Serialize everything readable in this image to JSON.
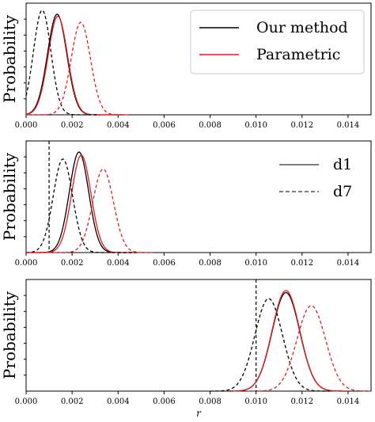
{
  "chart_data": {
    "type": "line",
    "xlabel": "r",
    "xlim": [
      0,
      0.015
    ],
    "xticks": [
      "0.000",
      "0.002",
      "0.004",
      "0.006",
      "0.008",
      "0.010",
      "0.012",
      "0.014"
    ],
    "legend_method": {
      "placement": "top-right",
      "entries": [
        {
          "label": "Our method",
          "color": "#000000"
        },
        {
          "label": "Parametric",
          "color": "#e31a1c"
        }
      ]
    },
    "legend_style": {
      "placement": "center-right",
      "entries": [
        {
          "label": "d1",
          "dash": "solid"
        },
        {
          "label": "d7",
          "dash": "dashed"
        }
      ]
    },
    "colors": {
      "ours": "#000000",
      "parametric": "#e31a1c"
    },
    "panels": [
      {
        "ylabel": "Probability",
        "true_value": null,
        "series": [
          {
            "method": "ours",
            "dataset": "d1",
            "dash": "solid",
            "curve": "gaussian",
            "mean": 0.00135,
            "sd": 0.00042,
            "peak": 1.0,
            "x_range": [
              0.0,
              0.0042
            ]
          },
          {
            "method": "parametric",
            "dataset": "d1",
            "dash": "solid",
            "curve": "gaussian",
            "mean": 0.00138,
            "sd": 0.00042,
            "peak": 0.98,
            "x_range": [
              0.0,
              0.0042
            ]
          },
          {
            "method": "ours",
            "dataset": "d7",
            "dash": "dashed",
            "curve": "gaussian",
            "mean": 0.0007,
            "sd": 0.00038,
            "peak": 1.04,
            "x_range": [
              0.0,
              0.0032
            ]
          },
          {
            "method": "parametric",
            "dataset": "d7",
            "dash": "dashed",
            "curve": "gaussian",
            "mean": 0.00238,
            "sd": 0.00042,
            "peak": 0.92,
            "x_range": [
              0.0,
              0.0045
            ]
          }
        ]
      },
      {
        "ylabel": "Probability",
        "true_value": 0.001,
        "series": [
          {
            "method": "ours",
            "dataset": "d1",
            "dash": "solid",
            "curve": "gaussian",
            "mean": 0.0023,
            "sd": 0.00042,
            "peak": 1.0,
            "x_range": [
              0.0,
              0.0048
            ]
          },
          {
            "method": "parametric",
            "dataset": "d1",
            "dash": "solid",
            "curve": "gaussian",
            "mean": 0.0024,
            "sd": 0.00042,
            "peak": 0.97,
            "x_range": [
              0.0,
              0.0048
            ]
          },
          {
            "method": "ours",
            "dataset": "d7",
            "dash": "dashed",
            "curve": "gaussian",
            "mean": 0.0016,
            "sd": 0.00042,
            "peak": 0.93,
            "x_range": [
              0.0,
              0.0048
            ]
          },
          {
            "method": "parametric",
            "dataset": "d7",
            "dash": "dashed",
            "curve": "gaussian",
            "mean": 0.00335,
            "sd": 0.00045,
            "peak": 0.83,
            "x_range": [
              0.0,
              0.0055
            ]
          }
        ]
      },
      {
        "ylabel": "Probability",
        "true_value": 0.01,
        "series": [
          {
            "method": "ours",
            "dataset": "d1",
            "dash": "solid",
            "curve": "gaussian",
            "mean": 0.0113,
            "sd": 0.0006,
            "peak": 0.98,
            "x_range": [
              0.0088,
              0.014
            ]
          },
          {
            "method": "parametric",
            "dataset": "d1",
            "dash": "solid",
            "curve": "gaussian",
            "mean": 0.0113,
            "sd": 0.0006,
            "peak": 1.0,
            "x_range": [
              0.0088,
              0.014
            ]
          },
          {
            "method": "ours",
            "dataset": "d7",
            "dash": "dashed",
            "curve": "gaussian",
            "mean": 0.01055,
            "sd": 0.0006,
            "peak": 0.92,
            "x_range": [
              0.008,
              0.0132
            ]
          },
          {
            "method": "parametric",
            "dataset": "d7",
            "dash": "dashed",
            "curve": "gaussian",
            "mean": 0.0124,
            "sd": 0.00062,
            "peak": 0.85,
            "x_range": [
              0.0096,
              0.015
            ]
          }
        ]
      }
    ]
  }
}
